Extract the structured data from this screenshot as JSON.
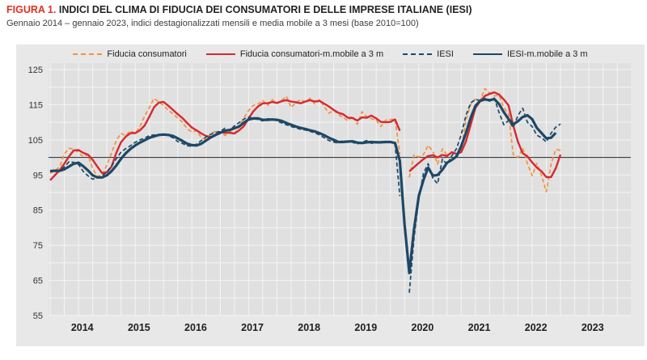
{
  "figure": {
    "label": "FIGURA 1.",
    "title": "INDICI DEL CLIMA DI FIDUCIA DEI CONSUMATORI E DELLE IMPRESE ITALIANE (IESI)",
    "subtitle": "Gennaio 2014 – gennaio 2023, indici destagionalizzati mensili e media mobile a 3 mesi (base 2010=100)"
  },
  "colors": {
    "figura_label": "#e0301e",
    "panel_bg": "#e8e8e8",
    "plot_bg": "#e0e0e0",
    "grid": "#f4f4f4",
    "reference_line": "#3c3c3c",
    "consumer": "#f0913e",
    "consumer_ma": "#d7282f",
    "iesi": "#1d4866",
    "iesi_ma": "#1d4866"
  },
  "chart_data": {
    "type": "line",
    "title": "INDICI DEL CLIMA DI FIDUCIA DEI CONSUMATORI E DELLE IMPRESE ITALIANE (IESI)",
    "subtitle": "Gennaio 2014 – gennaio 2023, indici destagionalizzati mensili e media mobile a 3 mesi (base 2010=100)",
    "x_start": "2014-01",
    "x_end": "2023-01",
    "x_unit": "month",
    "missing_month": "2020-04",
    "x_tick_labels": [
      "2014",
      "2015",
      "2016",
      "2017",
      "2018",
      "2019",
      "2020",
      "2021",
      "2022",
      "2023"
    ],
    "ylim": [
      55,
      125
    ],
    "y_ticks": [
      55,
      65,
      75,
      85,
      95,
      105,
      115,
      125
    ],
    "reference_line": 100,
    "grid": true,
    "legend_position": "top",
    "series": [
      {
        "name": "Fiducia consumatori",
        "color": "#f0913e",
        "style": "dashed",
        "width": 1.7,
        "values": [
          95.5,
          96.3,
          97.2,
          101.0,
          102.6,
          102.4,
          101.4,
          100.2,
          100.8,
          96.8,
          94.6,
          95.0,
          97.8,
          101.3,
          104.8,
          106.8,
          106.2,
          107.6,
          106.8,
          108.8,
          111.8,
          114.2,
          116.8,
          115.8,
          114.8,
          113.4,
          112.4,
          111.2,
          110.0,
          108.2,
          107.2,
          107.6,
          105.6,
          105.0,
          106.8,
          107.4,
          107.3,
          106.2,
          107.4,
          106.8,
          108.8,
          111.2,
          113.4,
          114.8,
          115.2,
          116.2,
          114.8,
          116.4,
          115.4,
          116.2,
          117.4,
          114.2,
          115.6,
          116.4,
          115.8,
          116.8,
          115.2,
          116.4,
          114.4,
          112.6,
          113.4,
          112.2,
          111.4,
          110.4,
          111.8,
          109.4,
          113.0,
          111.6,
          111.0,
          110.6,
          108.8,
          110.6,
          110.8,
          110.9,
          101.0,
          null,
          94.3,
          100.7,
          100.1,
          100.8,
          103.4,
          101.7,
          98.1,
          102.4,
          100.7,
          101.4,
          100.9,
          102.3,
          110.6,
          115.1,
          116.6,
          116.2,
          119.6,
          118.4,
          117.5,
          117.7,
          114.2,
          112.4,
          100.8,
          100.0,
          102.7,
          98.3,
          94.8,
          98.3,
          94.8,
          90.2,
          98.1,
          102.3,
          102.0
        ]
      },
      {
        "name": "Fiducia consumatori-m.mobile a 3 m",
        "color": "#d7282f",
        "style": "solid",
        "width": 2.4,
        "values": [
          93.5,
          94.9,
          96.3,
          98.2,
          100.3,
          102.0,
          102.1,
          101.3,
          100.8,
          99.3,
          97.4,
          95.5,
          95.8,
          97.4,
          101.3,
          104.3,
          105.9,
          106.9,
          106.9,
          107.7,
          109.1,
          111.6,
          114.3,
          115.6,
          115.8,
          114.7,
          113.5,
          112.3,
          111.2,
          109.8,
          108.5,
          107.7,
          106.8,
          106.1,
          105.8,
          106.4,
          107.2,
          107.0,
          107.0,
          106.8,
          107.7,
          108.9,
          111.1,
          113.1,
          114.5,
          115.4,
          115.4,
          115.8,
          115.5,
          116.0,
          116.3,
          115.9,
          115.7,
          115.4,
          115.9,
          116.3,
          115.9,
          116.1,
          115.3,
          114.5,
          113.5,
          112.7,
          112.3,
          111.3,
          111.2,
          110.5,
          111.4,
          111.3,
          111.9,
          111.1,
          110.1,
          110.0,
          110.1,
          110.8,
          107.6,
          null,
          96.0,
          97.2,
          98.4,
          99.5,
          100.4,
          100.6,
          100.0,
          100.7,
          100.4,
          101.5,
          101.0,
          101.5,
          104.6,
          109.3,
          114.1,
          116.0,
          117.5,
          118.1,
          118.5,
          117.9,
          116.5,
          114.8,
          109.1,
          104.4,
          101.2,
          100.3,
          98.6,
          97.1,
          96.0,
          94.4,
          94.4,
          96.9,
          100.8
        ]
      },
      {
        "name": "IESI",
        "color": "#1d4866",
        "style": "dashed",
        "width": 1.7,
        "values": [
          96.0,
          96.5,
          96.1,
          97.3,
          98.8,
          98.6,
          98.0,
          96.0,
          94.8,
          93.8,
          94.2,
          94.8,
          95.8,
          97.6,
          99.6,
          101.5,
          102.5,
          103.3,
          104.3,
          105.0,
          105.5,
          106.2,
          106.4,
          106.5,
          106.6,
          106.2,
          105.6,
          104.5,
          104.0,
          103.3,
          103.2,
          103.8,
          104.8,
          105.8,
          106.6,
          107.1,
          107.4,
          108.3,
          107.6,
          109.0,
          109.9,
          110.9,
          111.5,
          111.0,
          110.8,
          110.4,
          111.0,
          110.9,
          110.4,
          109.8,
          109.3,
          108.8,
          108.4,
          108.0,
          107.8,
          107.4,
          107.0,
          106.4,
          105.6,
          104.8,
          104.4,
          104.0,
          104.8,
          104.6,
          104.3,
          103.8,
          104.3,
          104.8,
          104.0,
          104.2,
          104.6,
          104.2,
          104.3,
          103.8,
          89.0,
          null,
          61.5,
          77.0,
          88.0,
          95.5,
          98.2,
          94.0,
          92.5,
          99.5,
          98.0,
          100.5,
          102.5,
          106.5,
          112.0,
          115.5,
          116.5,
          116.2,
          116.8,
          116.0,
          116.9,
          112.8,
          109.3,
          110.5,
          108.5,
          112.0,
          114.0,
          110.0,
          108.8,
          106.3,
          105.6,
          104.4,
          106.9,
          108.6,
          109.5
        ]
      },
      {
        "name": "IESI-m.mobile a 3 m",
        "color": "#1d4866",
        "style": "solid",
        "width": 3.2,
        "values": [
          96.1,
          96.2,
          96.2,
          96.6,
          97.4,
          98.2,
          98.5,
          97.5,
          96.3,
          94.9,
          94.3,
          94.3,
          94.9,
          96.1,
          97.7,
          99.6,
          101.2,
          102.4,
          103.4,
          104.2,
          104.9,
          105.6,
          106.0,
          106.4,
          106.5,
          106.4,
          106.1,
          105.4,
          104.7,
          103.9,
          103.5,
          103.4,
          103.9,
          104.8,
          105.7,
          106.4,
          107.0,
          107.6,
          107.8,
          108.3,
          108.8,
          109.9,
          110.8,
          111.1,
          111.1,
          110.7,
          110.7,
          110.8,
          110.7,
          110.4,
          109.8,
          109.3,
          108.8,
          108.4,
          108.1,
          107.7,
          107.4,
          106.9,
          106.3,
          105.6,
          105.0,
          104.4,
          104.4,
          104.5,
          104.6,
          104.2,
          104.1,
          104.3,
          104.4,
          104.3,
          104.3,
          104.4,
          104.4,
          104.1,
          99.0,
          81.0,
          67.1,
          79.5,
          89.0,
          93.6,
          97.1,
          94.8,
          95.0,
          96.5,
          98.5,
          99.3,
          100.3,
          103.2,
          107.0,
          111.3,
          114.7,
          116.1,
          116.5,
          116.3,
          116.6,
          115.2,
          112.9,
          110.9,
          109.4,
          110.3,
          111.5,
          112.0,
          110.9,
          108.4,
          106.9,
          105.4,
          105.6,
          107.0,
          null
        ]
      }
    ]
  }
}
